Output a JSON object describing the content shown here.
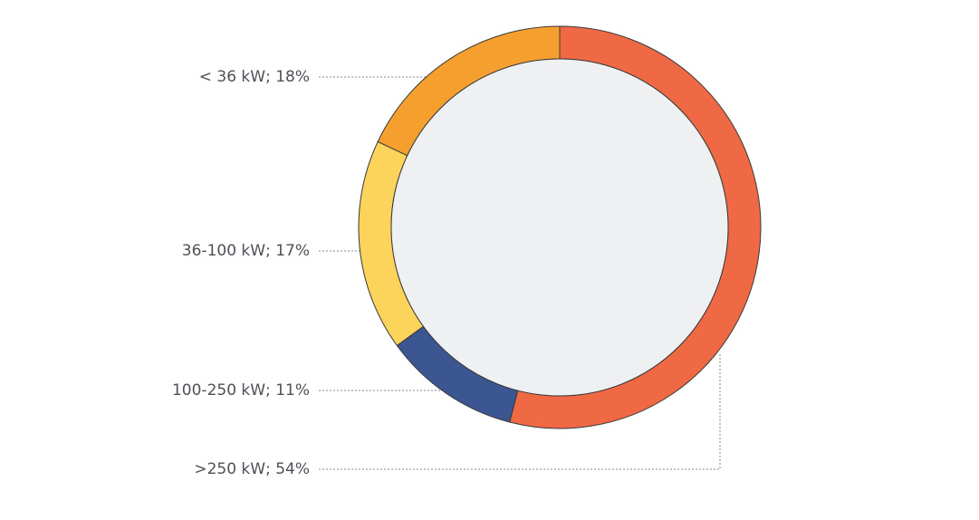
{
  "chart_data": {
    "type": "donut",
    "categories": [
      "< 36 kW; 18%",
      "36-100 kW; 17%",
      "100-250 kW; 11%",
      ">250 kW; 54%"
    ],
    "values": [
      18,
      17,
      11,
      54
    ],
    "colors": [
      "#f5a02e",
      "#fdd45b",
      "#3b5690",
      "#ee6944"
    ]
  }
}
